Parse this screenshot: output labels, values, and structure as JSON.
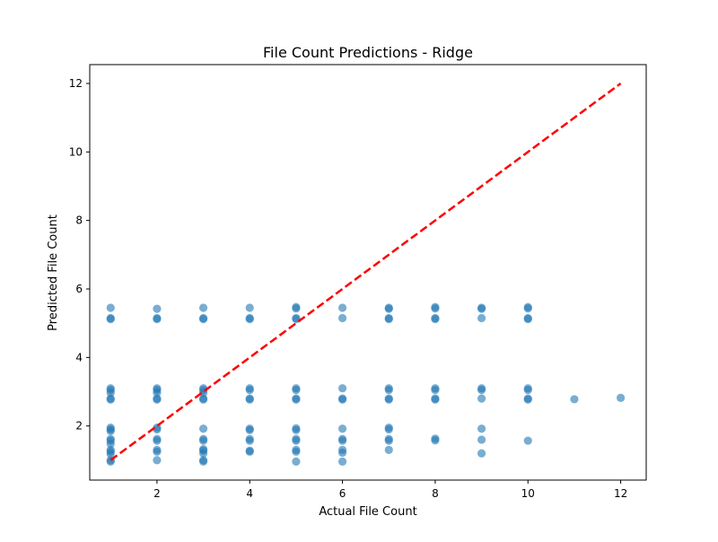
{
  "chart_data": {
    "type": "scatter",
    "title": "File Count Predictions - Ridge",
    "xlabel": "Actual File Count",
    "ylabel": "Predicted File Count",
    "xlim": [
      0.55,
      12.55
    ],
    "ylim": [
      0.42,
      12.55
    ],
    "xticks": [
      2,
      4,
      6,
      8,
      10,
      12
    ],
    "yticks": [
      2,
      4,
      6,
      8,
      10,
      12
    ],
    "grid": false,
    "point_color": "#1f77b4",
    "reference_line": {
      "style": "dashed",
      "color": "#ff0000",
      "x": [
        1,
        12
      ],
      "y": [
        1,
        12
      ]
    },
    "series": [
      {
        "points": [
          [
            1,
            5.45
          ],
          [
            1,
            5.15
          ],
          [
            1,
            5.12
          ],
          [
            1,
            3.1
          ],
          [
            1,
            3.05
          ],
          [
            1,
            2.97
          ],
          [
            1,
            2.8
          ],
          [
            1,
            2.77
          ],
          [
            1,
            1.95
          ],
          [
            1,
            1.9
          ],
          [
            1,
            1.85
          ],
          [
            1,
            1.62
          ],
          [
            1,
            1.57
          ],
          [
            1,
            1.48
          ],
          [
            1,
            1.3
          ],
          [
            1,
            1.25
          ],
          [
            1,
            1.18
          ],
          [
            1,
            1.0
          ],
          [
            1,
            0.96
          ],
          [
            2,
            5.42
          ],
          [
            2,
            5.15
          ],
          [
            2,
            5.12
          ],
          [
            2,
            3.1
          ],
          [
            2,
            3.05
          ],
          [
            2,
            2.97
          ],
          [
            2,
            2.8
          ],
          [
            2,
            2.77
          ],
          [
            2,
            1.95
          ],
          [
            2,
            1.9
          ],
          [
            2,
            1.62
          ],
          [
            2,
            1.57
          ],
          [
            2,
            1.3
          ],
          [
            2,
            1.25
          ],
          [
            2,
            1.0
          ],
          [
            3,
            5.45
          ],
          [
            3,
            5.15
          ],
          [
            3,
            5.12
          ],
          [
            3,
            3.1
          ],
          [
            3,
            3.05
          ],
          [
            3,
            2.97
          ],
          [
            3,
            2.8
          ],
          [
            3,
            2.77
          ],
          [
            3,
            1.92
          ],
          [
            3,
            1.62
          ],
          [
            3,
            1.57
          ],
          [
            3,
            1.32
          ],
          [
            3,
            1.28
          ],
          [
            3,
            1.2
          ],
          [
            3,
            1.0
          ],
          [
            3,
            0.96
          ],
          [
            4,
            5.45
          ],
          [
            4,
            5.15
          ],
          [
            4,
            5.12
          ],
          [
            4,
            3.1
          ],
          [
            4,
            3.05
          ],
          [
            4,
            2.8
          ],
          [
            4,
            2.77
          ],
          [
            4,
            1.92
          ],
          [
            4,
            1.88
          ],
          [
            4,
            1.62
          ],
          [
            4,
            1.57
          ],
          [
            4,
            1.28
          ],
          [
            4,
            1.25
          ],
          [
            5,
            5.47
          ],
          [
            5,
            5.43
          ],
          [
            5,
            5.15
          ],
          [
            5,
            5.12
          ],
          [
            5,
            3.1
          ],
          [
            5,
            3.05
          ],
          [
            5,
            2.8
          ],
          [
            5,
            2.77
          ],
          [
            5,
            1.93
          ],
          [
            5,
            1.88
          ],
          [
            5,
            1.62
          ],
          [
            5,
            1.57
          ],
          [
            5,
            1.3
          ],
          [
            5,
            1.25
          ],
          [
            5,
            0.96
          ],
          [
            6,
            5.45
          ],
          [
            6,
            5.15
          ],
          [
            6,
            3.1
          ],
          [
            6,
            2.8
          ],
          [
            6,
            2.77
          ],
          [
            6,
            1.92
          ],
          [
            6,
            1.62
          ],
          [
            6,
            1.57
          ],
          [
            6,
            1.3
          ],
          [
            6,
            1.22
          ],
          [
            6,
            0.96
          ],
          [
            7,
            5.45
          ],
          [
            7,
            5.42
          ],
          [
            7,
            5.15
          ],
          [
            7,
            5.12
          ],
          [
            7,
            3.1
          ],
          [
            7,
            3.05
          ],
          [
            7,
            2.8
          ],
          [
            7,
            2.77
          ],
          [
            7,
            1.95
          ],
          [
            7,
            1.9
          ],
          [
            7,
            1.62
          ],
          [
            7,
            1.57
          ],
          [
            7,
            1.3
          ],
          [
            8,
            5.47
          ],
          [
            8,
            5.43
          ],
          [
            8,
            5.15
          ],
          [
            8,
            5.12
          ],
          [
            8,
            3.1
          ],
          [
            8,
            3.05
          ],
          [
            8,
            2.8
          ],
          [
            8,
            2.77
          ],
          [
            8,
            1.63
          ],
          [
            8,
            1.58
          ],
          [
            9,
            5.45
          ],
          [
            9,
            5.42
          ],
          [
            9,
            5.15
          ],
          [
            9,
            3.1
          ],
          [
            9,
            3.05
          ],
          [
            9,
            2.8
          ],
          [
            9,
            1.92
          ],
          [
            9,
            1.6
          ],
          [
            9,
            1.2
          ],
          [
            10,
            5.47
          ],
          [
            10,
            5.43
          ],
          [
            10,
            5.15
          ],
          [
            10,
            5.12
          ],
          [
            10,
            3.1
          ],
          [
            10,
            3.05
          ],
          [
            10,
            2.8
          ],
          [
            10,
            2.77
          ],
          [
            10,
            1.57
          ],
          [
            11,
            2.78
          ],
          [
            12,
            2.82
          ]
        ]
      }
    ]
  }
}
